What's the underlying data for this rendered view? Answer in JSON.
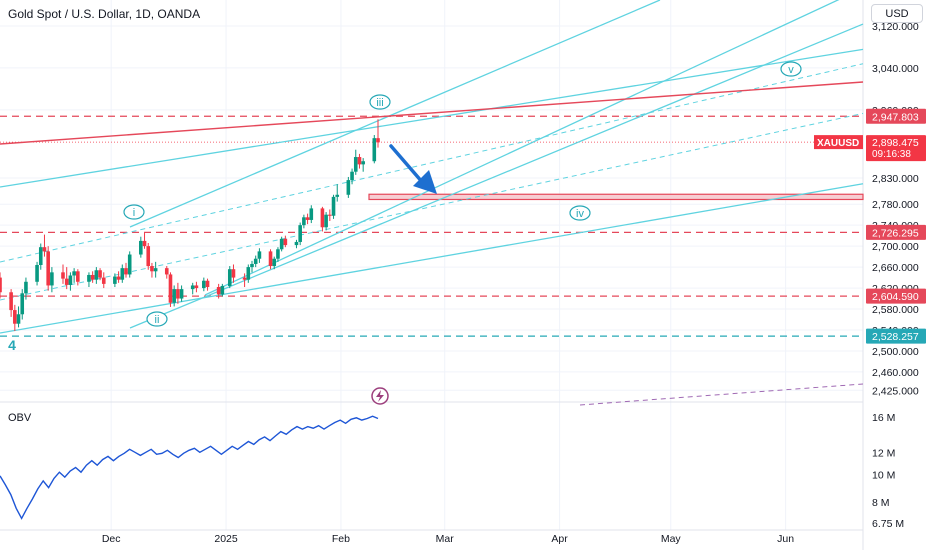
{
  "header": {
    "title": "Gold Spot / U.S. Dollar, 1D, OANDA",
    "currency": "USD"
  },
  "colors": {
    "up": "#089981",
    "down": "#f23645",
    "channel": "#5fd3e0",
    "resistance": "#e5485a",
    "arrow": "#1e6fd0",
    "obv": "#1e56d6",
    "grid": "#f0f3fa",
    "text": "#131722",
    "muted": "#555b68"
  },
  "chart_data": [
    {
      "type": "candlestick",
      "title": "Gold Spot / U.S. Dollar, 1D, OANDA",
      "x_tick_labels": [
        "Dec",
        "2025",
        "Feb",
        "Mar",
        "Apr",
        "May",
        "Jun"
      ],
      "x_tick_dates": [
        "2024-12-01",
        "2025-01-01",
        "2025-02-01",
        "2025-03-01",
        "2025-04-01",
        "2025-05-01",
        "2025-06-01"
      ],
      "y_tick_labels": [
        "3,120.000",
        "3,040.000",
        "2,960.000",
        "2,830.000",
        "2,780.000",
        "2,740.000",
        "2,700.000",
        "2,660.000",
        "2,620.000",
        "2,580.000",
        "2,540.000",
        "2,500.000",
        "2,460.000",
        "2,425.000"
      ],
      "y_tick_values": [
        3120,
        3040,
        2960,
        2830,
        2780,
        2740,
        2700,
        2660,
        2620,
        2580,
        2540,
        2500,
        2460,
        2425
      ],
      "ylim": [
        2410,
        3205
      ],
      "symbol": "XAUUSD",
      "last_price": "2,898.475",
      "countdown": "09:16:38",
      "price_lines": [
        {
          "label": "2,947.803",
          "value": 2947.803,
          "color": "#e5485a"
        },
        {
          "label": "2,726.295",
          "value": 2726.295,
          "color": "#e5485a"
        },
        {
          "label": "2,604.590",
          "value": 2604.59,
          "color": "#e5485a"
        },
        {
          "label": "2,528.257",
          "value": 2528.257,
          "color": "#26a8b6"
        }
      ],
      "target_zone": [
        2789,
        2799
      ],
      "wave_labels": [
        "4",
        "i",
        "ii",
        "iii",
        "iv",
        "v"
      ],
      "candles": [
        {
          "date": "2024-11-01",
          "o": 2640,
          "h": 2650,
          "l": 2600,
          "c": 2612
        },
        {
          "date": "2024-11-04",
          "o": 2612,
          "h": 2618,
          "l": 2565,
          "c": 2578
        },
        {
          "date": "2024-11-05",
          "o": 2578,
          "h": 2588,
          "l": 2538,
          "c": 2552
        },
        {
          "date": "2024-11-06",
          "o": 2552,
          "h": 2585,
          "l": 2545,
          "c": 2570
        },
        {
          "date": "2024-11-07",
          "o": 2570,
          "h": 2618,
          "l": 2560,
          "c": 2610
        },
        {
          "date": "2024-11-08",
          "o": 2610,
          "h": 2640,
          "l": 2598,
          "c": 2632
        },
        {
          "date": "2024-11-11",
          "o": 2632,
          "h": 2670,
          "l": 2625,
          "c": 2664
        },
        {
          "date": "2024-11-12",
          "o": 2664,
          "h": 2705,
          "l": 2655,
          "c": 2698
        },
        {
          "date": "2024-11-13",
          "o": 2698,
          "h": 2722,
          "l": 2680,
          "c": 2690
        },
        {
          "date": "2024-11-14",
          "o": 2690,
          "h": 2700,
          "l": 2615,
          "c": 2625
        },
        {
          "date": "2024-11-15",
          "o": 2625,
          "h": 2660,
          "l": 2612,
          "c": 2650
        },
        {
          "date": "2024-11-18",
          "o": 2650,
          "h": 2665,
          "l": 2628,
          "c": 2638
        },
        {
          "date": "2024-11-19",
          "o": 2638,
          "h": 2660,
          "l": 2618,
          "c": 2626
        },
        {
          "date": "2024-11-20",
          "o": 2626,
          "h": 2650,
          "l": 2615,
          "c": 2644
        },
        {
          "date": "2024-11-21",
          "o": 2644,
          "h": 2658,
          "l": 2630,
          "c": 2652
        },
        {
          "date": "2024-11-22",
          "o": 2652,
          "h": 2656,
          "l": 2625,
          "c": 2632
        },
        {
          "date": "2024-11-25",
          "o": 2632,
          "h": 2650,
          "l": 2622,
          "c": 2645
        },
        {
          "date": "2024-11-26",
          "o": 2645,
          "h": 2652,
          "l": 2630,
          "c": 2636
        },
        {
          "date": "2024-11-27",
          "o": 2636,
          "h": 2660,
          "l": 2628,
          "c": 2654
        },
        {
          "date": "2024-11-28",
          "o": 2654,
          "h": 2658,
          "l": 2635,
          "c": 2640
        },
        {
          "date": "2024-11-29",
          "o": 2640,
          "h": 2650,
          "l": 2620,
          "c": 2628
        },
        {
          "date": "2024-12-02",
          "o": 2628,
          "h": 2648,
          "l": 2622,
          "c": 2642
        },
        {
          "date": "2024-12-03",
          "o": 2642,
          "h": 2652,
          "l": 2630,
          "c": 2636
        },
        {
          "date": "2024-12-04",
          "o": 2636,
          "h": 2665,
          "l": 2630,
          "c": 2658
        },
        {
          "date": "2024-12-05",
          "o": 2658,
          "h": 2668,
          "l": 2640,
          "c": 2646
        },
        {
          "date": "2024-12-06",
          "o": 2646,
          "h": 2690,
          "l": 2640,
          "c": 2684
        },
        {
          "date": "2024-12-09",
          "o": 2684,
          "h": 2718,
          "l": 2678,
          "c": 2710
        },
        {
          "date": "2024-12-10",
          "o": 2710,
          "h": 2725,
          "l": 2695,
          "c": 2700
        },
        {
          "date": "2024-12-11",
          "o": 2700,
          "h": 2706,
          "l": 2655,
          "c": 2662
        },
        {
          "date": "2024-12-12",
          "o": 2662,
          "h": 2668,
          "l": 2640,
          "c": 2652
        },
        {
          "date": "2024-12-13",
          "o": 2652,
          "h": 2670,
          "l": 2640,
          "c": 2658
        },
        {
          "date": "2024-12-16",
          "o": 2658,
          "h": 2662,
          "l": 2638,
          "c": 2646
        },
        {
          "date": "2024-12-17",
          "o": 2646,
          "h": 2650,
          "l": 2584,
          "c": 2592
        },
        {
          "date": "2024-12-18",
          "o": 2592,
          "h": 2625,
          "l": 2585,
          "c": 2618
        },
        {
          "date": "2024-12-19",
          "o": 2618,
          "h": 2630,
          "l": 2590,
          "c": 2600
        },
        {
          "date": "2024-12-20",
          "o": 2600,
          "h": 2625,
          "l": 2594,
          "c": 2618
        },
        {
          "date": "2024-12-23",
          "o": 2618,
          "h": 2630,
          "l": 2608,
          "c": 2625
        },
        {
          "date": "2024-12-24",
          "o": 2625,
          "h": 2632,
          "l": 2612,
          "c": 2620
        },
        {
          "date": "2024-12-26",
          "o": 2620,
          "h": 2640,
          "l": 2614,
          "c": 2634
        },
        {
          "date": "2024-12-27",
          "o": 2634,
          "h": 2638,
          "l": 2615,
          "c": 2622
        },
        {
          "date": "2024-12-30",
          "o": 2622,
          "h": 2628,
          "l": 2600,
          "c": 2608
        },
        {
          "date": "2024-12-31",
          "o": 2608,
          "h": 2628,
          "l": 2604,
          "c": 2624
        },
        {
          "date": "2025-01-02",
          "o": 2624,
          "h": 2662,
          "l": 2620,
          "c": 2656
        },
        {
          "date": "2025-01-03",
          "o": 2656,
          "h": 2665,
          "l": 2630,
          "c": 2640
        },
        {
          "date": "2025-01-06",
          "o": 2640,
          "h": 2648,
          "l": 2622,
          "c": 2636
        },
        {
          "date": "2025-01-07",
          "o": 2636,
          "h": 2665,
          "l": 2630,
          "c": 2660
        },
        {
          "date": "2025-01-08",
          "o": 2660,
          "h": 2672,
          "l": 2650,
          "c": 2666
        },
        {
          "date": "2025-01-09",
          "o": 2666,
          "h": 2682,
          "l": 2660,
          "c": 2676
        },
        {
          "date": "2025-01-10",
          "o": 2676,
          "h": 2696,
          "l": 2668,
          "c": 2690
        },
        {
          "date": "2025-01-13",
          "o": 2690,
          "h": 2694,
          "l": 2656,
          "c": 2662
        },
        {
          "date": "2025-01-14",
          "o": 2662,
          "h": 2680,
          "l": 2656,
          "c": 2676
        },
        {
          "date": "2025-01-15",
          "o": 2676,
          "h": 2698,
          "l": 2670,
          "c": 2694
        },
        {
          "date": "2025-01-16",
          "o": 2694,
          "h": 2718,
          "l": 2690,
          "c": 2714
        },
        {
          "date": "2025-01-17",
          "o": 2714,
          "h": 2720,
          "l": 2698,
          "c": 2702
        },
        {
          "date": "2025-01-20",
          "o": 2702,
          "h": 2712,
          "l": 2696,
          "c": 2708
        },
        {
          "date": "2025-01-21",
          "o": 2708,
          "h": 2745,
          "l": 2702,
          "c": 2740
        },
        {
          "date": "2025-01-22",
          "o": 2740,
          "h": 2760,
          "l": 2734,
          "c": 2755
        },
        {
          "date": "2025-01-23",
          "o": 2755,
          "h": 2762,
          "l": 2742,
          "c": 2750
        },
        {
          "date": "2025-01-24",
          "o": 2750,
          "h": 2778,
          "l": 2744,
          "c": 2772
        },
        {
          "date": "2025-01-27",
          "o": 2772,
          "h": 2775,
          "l": 2728,
          "c": 2736
        },
        {
          "date": "2025-01-28",
          "o": 2736,
          "h": 2765,
          "l": 2730,
          "c": 2760
        },
        {
          "date": "2025-01-29",
          "o": 2760,
          "h": 2770,
          "l": 2748,
          "c": 2758
        },
        {
          "date": "2025-01-30",
          "o": 2758,
          "h": 2798,
          "l": 2752,
          "c": 2794
        },
        {
          "date": "2025-01-31",
          "o": 2794,
          "h": 2818,
          "l": 2785,
          "c": 2798
        },
        {
          "date": "2025-02-03",
          "o": 2798,
          "h": 2832,
          "l": 2792,
          "c": 2826
        },
        {
          "date": "2025-02-04",
          "o": 2826,
          "h": 2848,
          "l": 2818,
          "c": 2842
        },
        {
          "date": "2025-02-05",
          "o": 2842,
          "h": 2884,
          "l": 2836,
          "c": 2870
        },
        {
          "date": "2025-02-06",
          "o": 2870,
          "h": 2876,
          "l": 2848,
          "c": 2856
        },
        {
          "date": "2025-02-07",
          "o": 2856,
          "h": 2868,
          "l": 2842,
          "c": 2862
        },
        {
          "date": "2025-02-10",
          "o": 2862,
          "h": 2912,
          "l": 2858,
          "c": 2906
        },
        {
          "date": "2025-02-11",
          "o": 2906,
          "h": 2942,
          "l": 2888,
          "c": 2898
        }
      ]
    },
    {
      "type": "line",
      "title": "OBV",
      "y_tick_labels": [
        "16 M",
        "12 M",
        "10 M",
        "8 M",
        "6.75 M"
      ],
      "y_tick_values": [
        16,
        12,
        10,
        8,
        6.75
      ],
      "ylim": [
        6.4,
        17.3
      ],
      "units": "M",
      "series": [
        {
          "values": [
            9.9,
            9.2,
            8.5,
            7.6,
            7.0,
            7.6,
            8.2,
            8.9,
            9.5,
            9.0,
            9.7,
            10.2,
            9.8,
            10.3,
            10.6,
            10.2,
            10.8,
            11.2,
            10.8,
            11.3,
            11.6,
            11.2,
            11.6,
            11.9,
            12.3,
            12.0,
            11.7,
            12.0,
            12.3,
            11.8,
            11.9,
            12.2,
            11.8,
            11.5,
            11.9,
            12.2,
            12.4,
            12.0,
            12.3,
            12.6,
            12.2,
            11.8,
            12.2,
            12.6,
            12.3,
            12.7,
            13.1,
            12.8,
            13.3,
            13.6,
            13.2,
            13.7,
            14.2,
            13.9,
            14.4,
            14.8,
            14.5,
            14.8,
            14.6,
            14.9,
            14.5,
            14.9,
            15.3,
            15.6,
            15.2,
            15.7,
            15.9,
            15.6,
            15.8,
            16.1,
            15.8
          ]
        }
      ]
    }
  ]
}
